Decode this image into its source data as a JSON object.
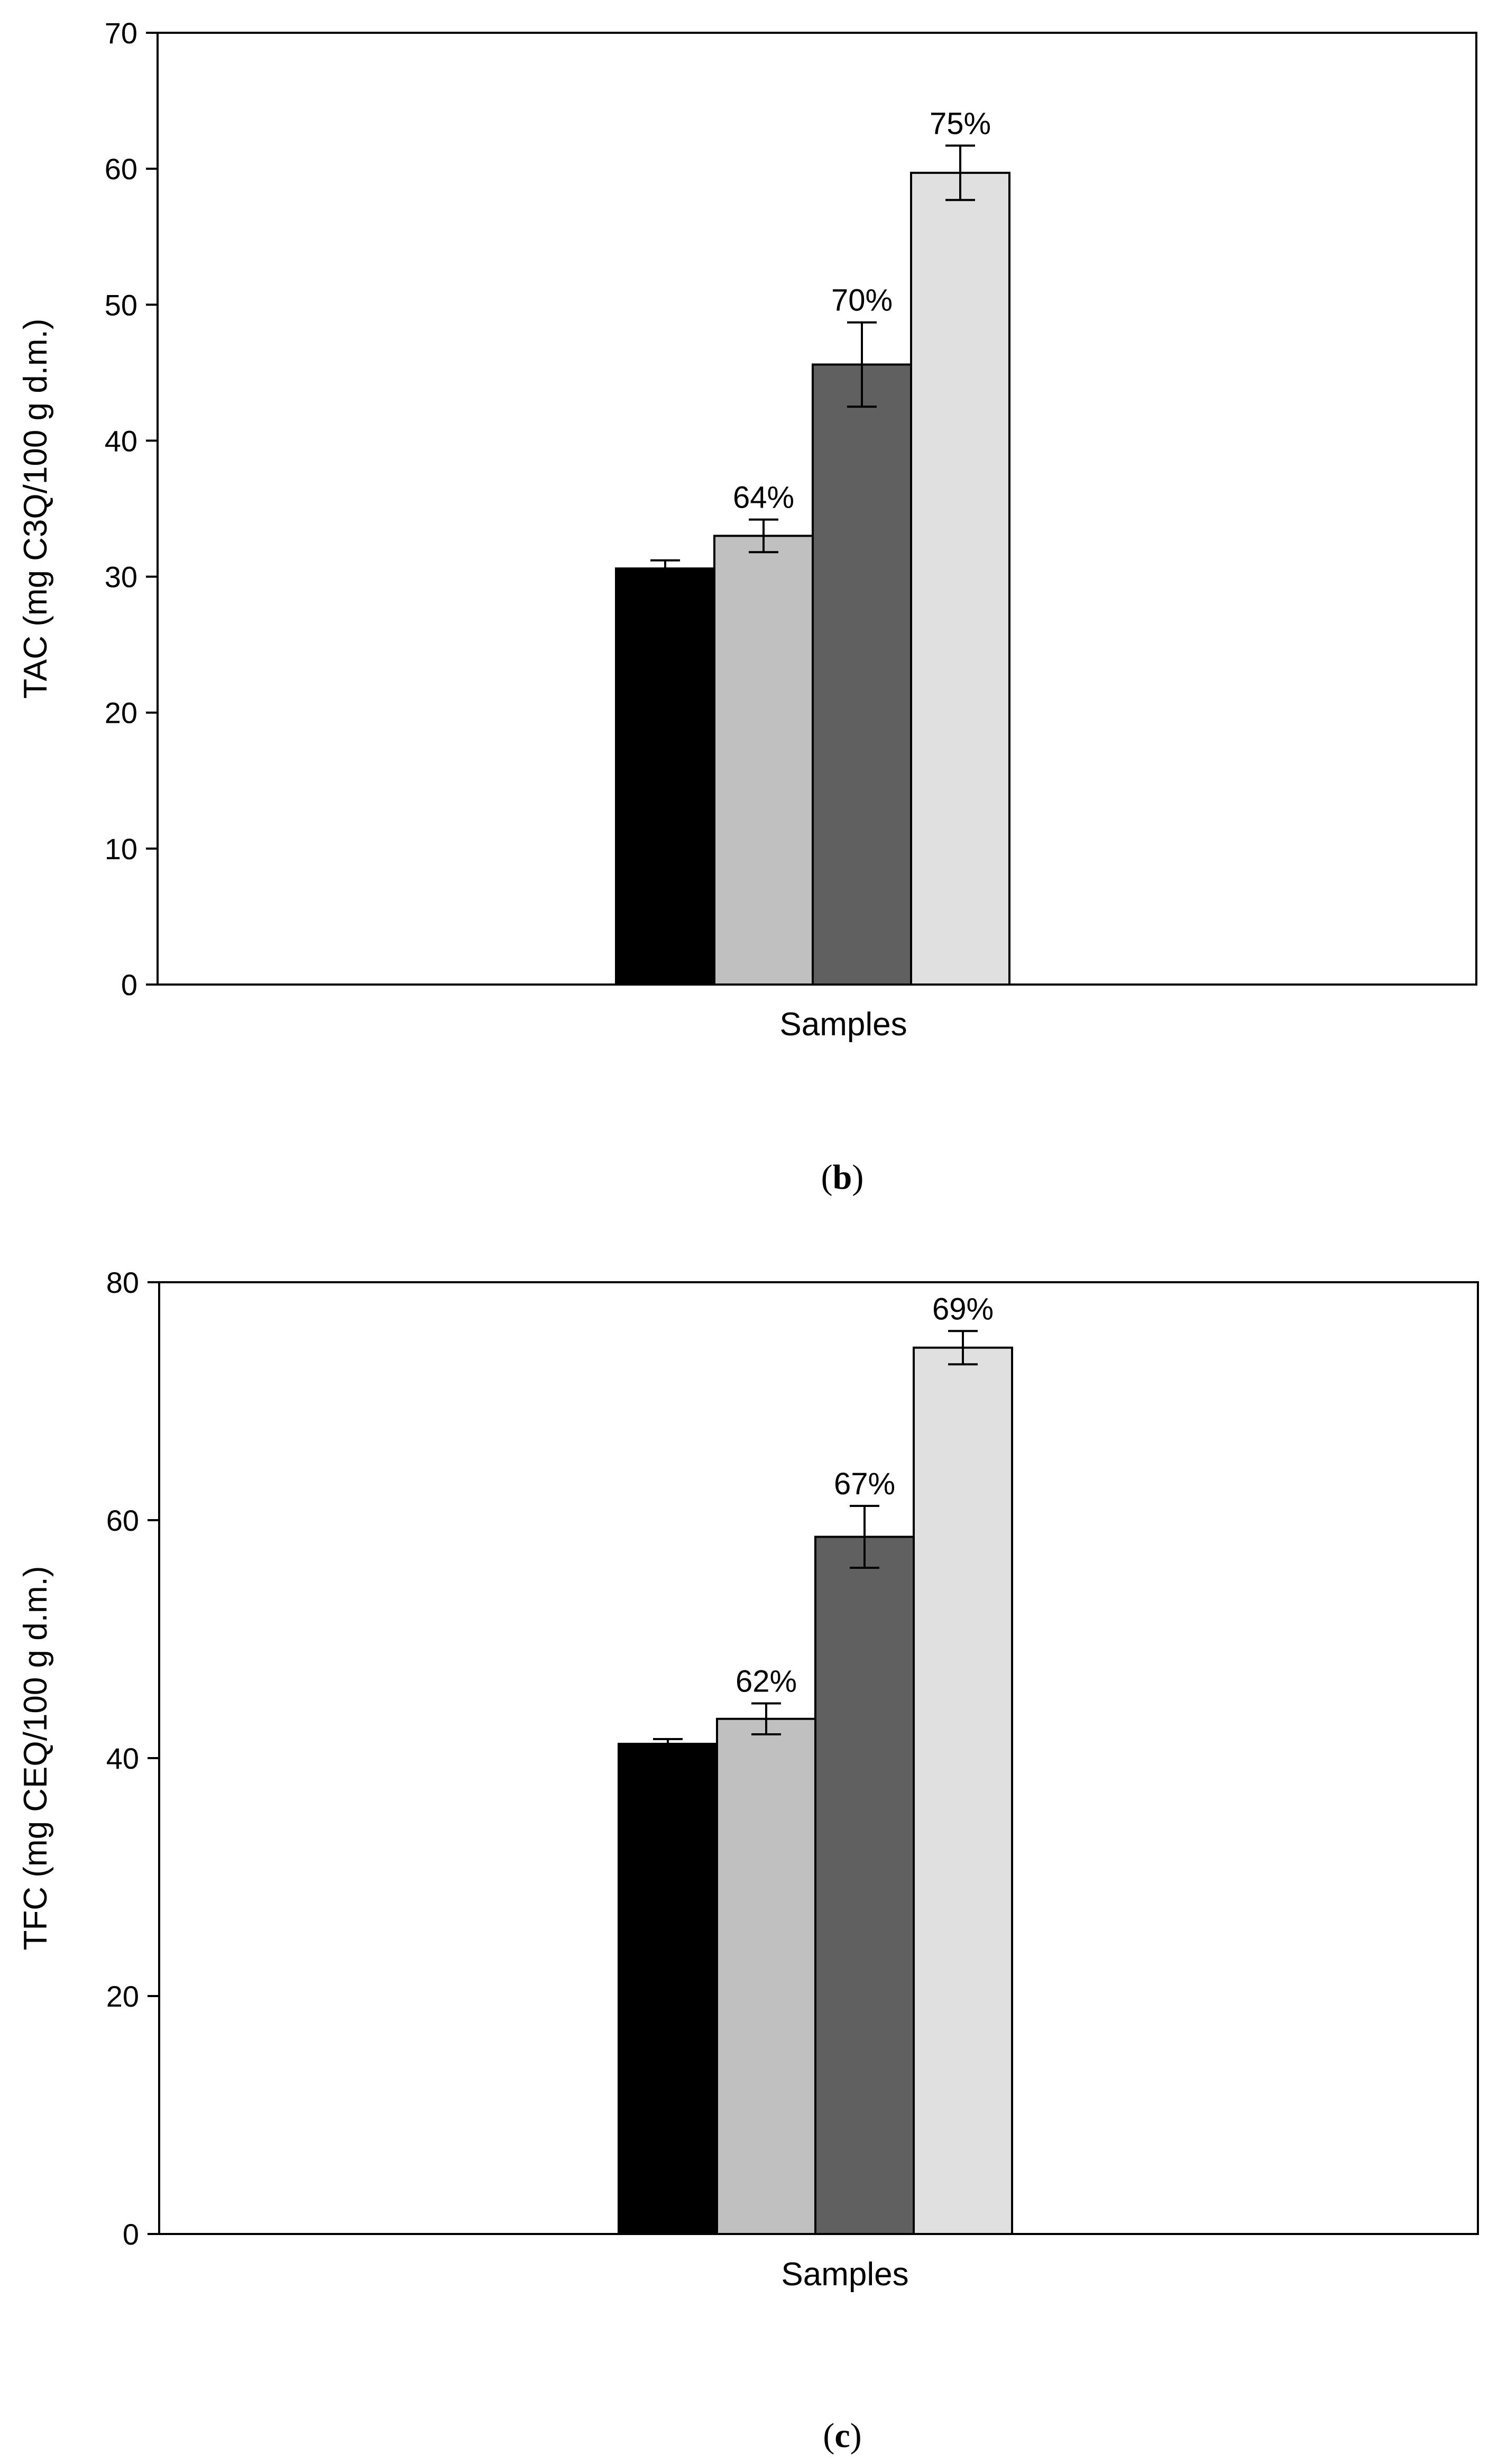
{
  "chart_data": [
    {
      "type": "bar",
      "panel": "b",
      "xlabel": "Samples",
      "ylabel": "TAC (mg C3Q/100 g d.m.)",
      "ylim": [
        0,
        70
      ],
      "yticks": [
        0,
        10,
        20,
        30,
        40,
        50,
        60,
        70
      ],
      "series": [
        {
          "name": "bar-1",
          "value": 30.6,
          "error": 0.6,
          "color": "#000000",
          "label": ""
        },
        {
          "name": "bar-2",
          "value": 33.0,
          "error": 1.2,
          "color": "#c0c0c0",
          "label": "64%"
        },
        {
          "name": "bar-3",
          "value": 45.6,
          "error": 3.1,
          "color": "#606060",
          "label": "70%"
        },
        {
          "name": "bar-4",
          "value": 59.7,
          "error": 2.0,
          "color": "#e0e0e0",
          "label": "75%"
        }
      ]
    },
    {
      "type": "bar",
      "panel": "c",
      "xlabel": "Samples",
      "ylabel": "TFC (mg CEQ/100 g d.m.)",
      "ylim": [
        0,
        80
      ],
      "yticks": [
        0,
        20,
        40,
        60,
        80
      ],
      "series": [
        {
          "name": "bar-1",
          "value": 41.2,
          "error": 0.4,
          "color": "#000000",
          "label": ""
        },
        {
          "name": "bar-2",
          "value": 43.3,
          "error": 1.3,
          "color": "#c0c0c0",
          "label": "62%"
        },
        {
          "name": "bar-3",
          "value": 58.6,
          "error": 2.6,
          "color": "#606060",
          "label": "67%"
        },
        {
          "name": "bar-4",
          "value": 74.5,
          "error": 1.4,
          "color": "#e0e0e0",
          "label": "69%"
        }
      ]
    }
  ],
  "captions": {
    "b": "b",
    "c": "c"
  }
}
